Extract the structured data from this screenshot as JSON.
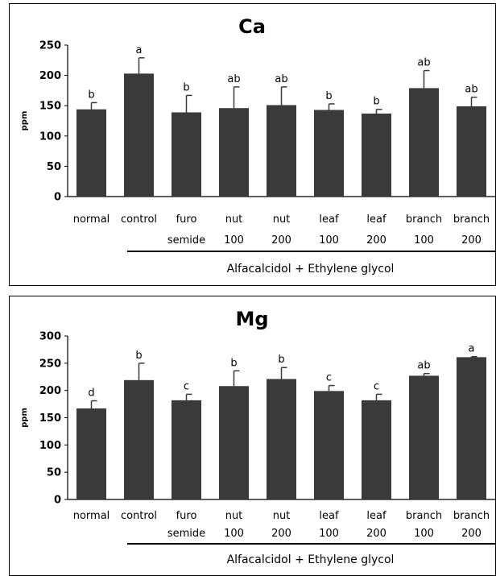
{
  "chart_data": [
    {
      "type": "bar",
      "title": "Ca",
      "ylabel": "ppm",
      "xlabel": "",
      "ylim": [
        0,
        250
      ],
      "yticks": [
        0,
        50,
        100,
        150,
        200,
        250
      ],
      "categories": [
        [
          "normal",
          ""
        ],
        [
          "control",
          ""
        ],
        [
          "furo",
          "semide"
        ],
        [
          "nut",
          "100"
        ],
        [
          "nut",
          "200"
        ],
        [
          "leaf",
          "100"
        ],
        [
          "leaf",
          "200"
        ],
        [
          "branch",
          "100"
        ],
        [
          "branch",
          "200"
        ]
      ],
      "values": [
        144,
        203,
        139,
        146,
        151,
        143,
        137,
        179,
        149
      ],
      "errors": [
        11,
        26,
        28,
        35,
        30,
        10,
        7,
        29,
        15
      ],
      "significance": [
        "b",
        "a",
        "b",
        "ab",
        "ab",
        "b",
        "b",
        "ab",
        "ab"
      ],
      "group_label": "Alfacalcidol + Ethylene glycol",
      "bar_color": "#3a3a3a"
    },
    {
      "type": "bar",
      "title": "Mg",
      "ylabel": "ppm",
      "xlabel": "",
      "ylim": [
        0,
        300
      ],
      "yticks": [
        0,
        50,
        100,
        150,
        200,
        250,
        300
      ],
      "categories": [
        [
          "normal",
          ""
        ],
        [
          "control",
          ""
        ],
        [
          "furo",
          "semide"
        ],
        [
          "nut",
          "100"
        ],
        [
          "nut",
          "200"
        ],
        [
          "leaf",
          "100"
        ],
        [
          "leaf",
          "200"
        ],
        [
          "branch",
          "100"
        ],
        [
          "branch",
          "200"
        ]
      ],
      "values": [
        167,
        219,
        182,
        208,
        221,
        199,
        182,
        227,
        261
      ],
      "errors": [
        14,
        31,
        11,
        28,
        21,
        10,
        11,
        4,
        1
      ],
      "significance": [
        "d",
        "b",
        "c",
        "b",
        "b",
        "c",
        "c",
        "ab",
        "a"
      ],
      "group_label": "Alfacalcidol + Ethylene glycol",
      "bar_color": "#3a3a3a"
    }
  ]
}
